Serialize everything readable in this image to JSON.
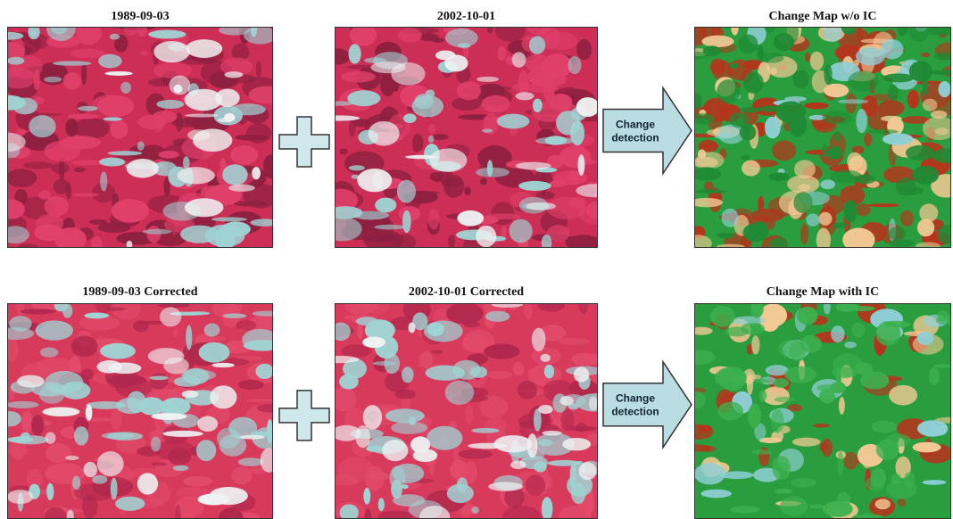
{
  "rows": [
    {
      "panels": [
        {
          "title": "1989-09-03"
        },
        {
          "title": "2002-10-01"
        },
        {
          "title": "Change Map w/o IC"
        }
      ],
      "arrow": {
        "lines": [
          "Change",
          "detection"
        ]
      }
    },
    {
      "panels": [
        {
          "title": "1989-09-03 Corrected"
        },
        {
          "title": "2002-10-01 Corrected"
        },
        {
          "title": "Change Map with IC"
        }
      ],
      "arrow": {
        "lines": [
          "Change",
          "detection"
        ]
      }
    }
  ]
}
